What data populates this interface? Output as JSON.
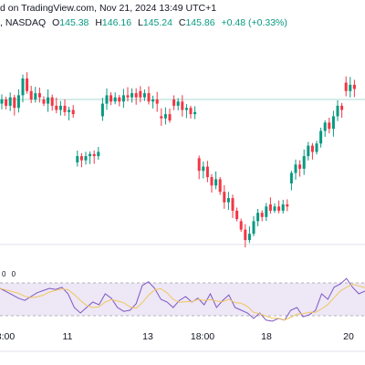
{
  "header": {
    "published": "d on TradingView.com, Nov 21, 2024 13:49 UTC+1",
    "exchange": ", NASDAQ",
    "o_key": "O",
    "o_val": "145.38",
    "h_key": "H",
    "h_val": "146.16",
    "l_key": "L",
    "l_val": "145.24",
    "c_key": "C",
    "c_val": "145.86",
    "change": "+0.48 (+0.33%)"
  },
  "oscillator": {
    "label": "0 0"
  },
  "colors": {
    "up": "#089981",
    "down": "#f23645",
    "osc_line": "#7e57c2",
    "signal": "#f0c75e",
    "band": "#ede7f6"
  },
  "chart_data": [
    {
      "type": "candlestick",
      "x_tick_labels": [
        "8:00",
        "11",
        "13",
        "18:00",
        "18",
        "20"
      ],
      "ylim": [
        0,
        100
      ],
      "last_level": 70,
      "segments": [
        {
          "start": 0,
          "open": 68,
          "end": 72,
          "moves": [
            2,
            -3,
            4,
            -5,
            6,
            8,
            -6,
            -4,
            3,
            -2
          ]
        },
        {
          "start": 10,
          "open": 70,
          "end": 60,
          "moves": [
            -2,
            3,
            -4,
            -2,
            2,
            -3,
            1,
            -2
          ]
        },
        {
          "start": 18,
          "open": 40,
          "end": 44,
          "moves": [
            3,
            -2,
            2,
            1,
            -1,
            2
          ]
        },
        {
          "start": 24,
          "open": 62,
          "end": 72,
          "moves": [
            6,
            4,
            -3,
            2,
            -2,
            3,
            -1,
            2,
            -2
          ]
        },
        {
          "start": 33,
          "open": 74,
          "end": 66,
          "moves": [
            -3,
            2,
            -4,
            1,
            -2
          ]
        },
        {
          "start": 38,
          "open": 62,
          "end": 58,
          "moves": [
            -1,
            2,
            -3
          ]
        },
        {
          "start": 41,
          "open": 70,
          "end": 59,
          "moves": [
            -3,
            2,
            -4,
            1,
            -3,
            1
          ]
        },
        {
          "start": 47,
          "open": 42,
          "end": 10,
          "moves": [
            -6,
            2,
            -5,
            -4,
            3,
            -6,
            -5,
            2,
            -6,
            -4
          ]
        },
        {
          "start": 57,
          "open": 12,
          "end": 22,
          "moves": [
            -4,
            -5,
            3,
            6,
            4,
            -2,
            5
          ]
        },
        {
          "start": 64,
          "open": 20,
          "end": 18,
          "moves": [
            -3,
            2,
            -2,
            3,
            -1
          ]
        },
        {
          "start": 69,
          "open": 30,
          "end": 60,
          "moves": [
            5,
            4,
            -2,
            6,
            5,
            -3,
            4,
            6
          ]
        },
        {
          "start": 77,
          "open": 55,
          "end": 70,
          "moves": [
            4,
            -3,
            6,
            5,
            -2
          ]
        },
        {
          "start": 82,
          "open": 78,
          "end": 72,
          "moves": [
            -4,
            3,
            -2
          ]
        }
      ]
    },
    {
      "type": "oscillator",
      "ylim": [
        0,
        100
      ],
      "upper_band": 80,
      "lower_band": 20,
      "values": [
        70,
        64,
        58,
        52,
        48,
        55,
        62,
        66,
        70,
        68,
        72,
        60,
        35,
        25,
        35,
        45,
        40,
        60,
        52,
        35,
        28,
        30,
        42,
        75,
        82,
        70,
        50,
        45,
        35,
        48,
        55,
        45,
        52,
        40,
        60,
        35,
        48,
        58,
        35,
        30,
        25,
        15,
        25,
        12,
        10,
        15,
        12,
        30,
        35,
        18,
        22,
        30,
        60,
        50,
        72,
        78,
        88,
        72,
        60,
        65
      ]
    }
  ]
}
